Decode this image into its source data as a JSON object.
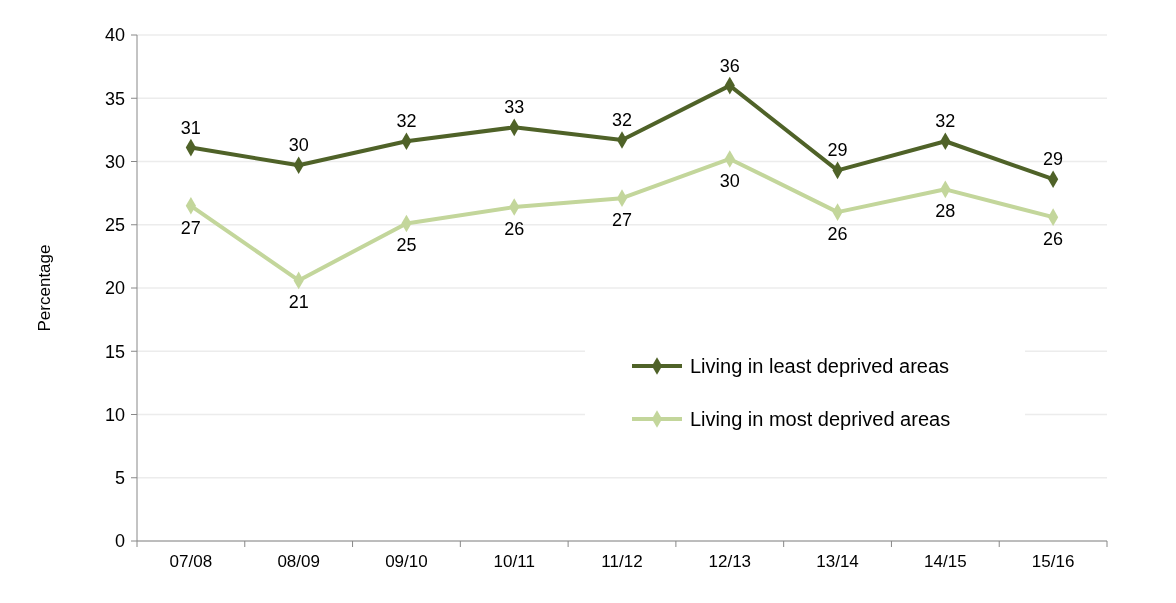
{
  "chart_data": {
    "type": "line",
    "ylabel": "Percentage",
    "categories": [
      "07/08",
      "08/09",
      "09/10",
      "10/11",
      "11/12",
      "12/13",
      "13/14",
      "14/15",
      "15/16"
    ],
    "series": [
      {
        "name": "Living in least deprived areas",
        "color": "#4f6228",
        "values": [
          31.1,
          29.7,
          31.6,
          32.7,
          31.7,
          36.0,
          29.3,
          31.6,
          28.6
        ],
        "value_labels": [
          "31",
          "30",
          "32",
          "33",
          "32",
          "36",
          "29",
          "32",
          "29"
        ]
      },
      {
        "name": "Living in most deprived areas",
        "color": "#c3d69b",
        "values": [
          26.5,
          20.6,
          25.1,
          26.4,
          27.1,
          30.2,
          26.0,
          27.8,
          25.6
        ],
        "value_labels": [
          "27",
          "21",
          "25",
          "26",
          "27",
          "30",
          "26",
          "28",
          "26"
        ]
      }
    ],
    "ylim": [
      0,
      40
    ],
    "yticks": [
      0,
      5,
      10,
      15,
      20,
      25,
      30,
      35,
      40
    ],
    "grid": "y",
    "legend": "bottom right",
    "marker": "diamond",
    "line_style": "solid"
  }
}
